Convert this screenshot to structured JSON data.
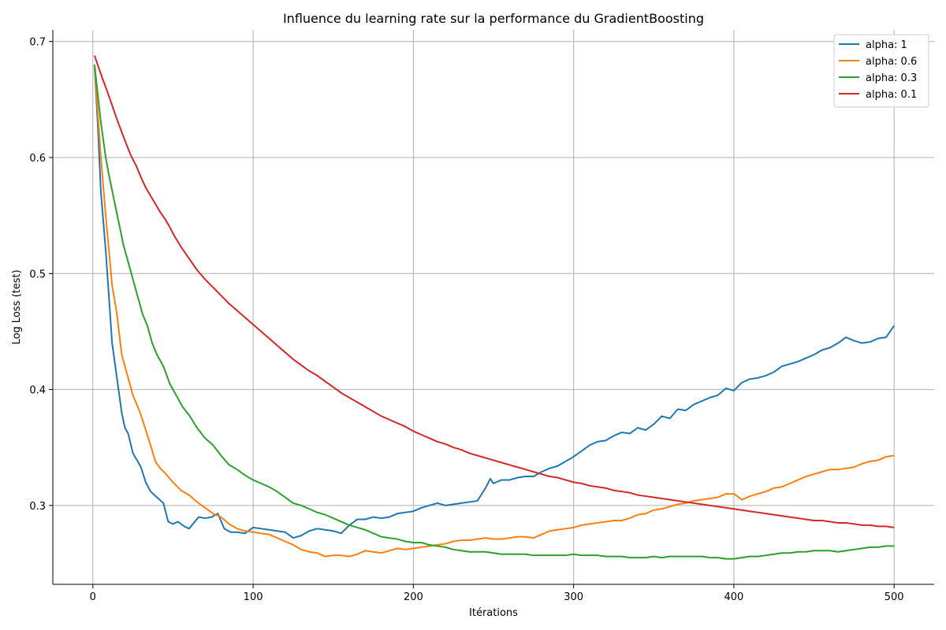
{
  "chart_data": {
    "type": "line",
    "title": "Influence du learning rate sur la performance du GradientBoosting",
    "xlabel": "Itérations",
    "ylabel": "Log Loss (test)",
    "xlim": [
      -25,
      525
    ],
    "ylim": [
      0.232,
      0.71
    ],
    "xticks": [
      0,
      100,
      200,
      300,
      400,
      500
    ],
    "yticks": [
      0.3,
      0.4,
      0.5,
      0.6,
      0.7
    ],
    "grid": true,
    "legend_position": "top-right",
    "series": [
      {
        "name": "alpha: 1",
        "color": "#1f77b4",
        "x": [
          1,
          3,
          5,
          8,
          10,
          12,
          15,
          18,
          20,
          22,
          25,
          28,
          30,
          33,
          36,
          40,
          44,
          47,
          50,
          53,
          57,
          60,
          63,
          66,
          70,
          74,
          78,
          82,
          86,
          90,
          95,
          100,
          105,
          110,
          115,
          120,
          125,
          130,
          135,
          140,
          145,
          150,
          155,
          160,
          165,
          170,
          175,
          180,
          185,
          190,
          195,
          200,
          205,
          210,
          215,
          220,
          225,
          230,
          235,
          240,
          245,
          248,
          250,
          255,
          260,
          265,
          270,
          275,
          280,
          285,
          290,
          295,
          300,
          305,
          310,
          315,
          320,
          325,
          330,
          335,
          340,
          345,
          350,
          355,
          360,
          365,
          370,
          375,
          380,
          385,
          390,
          395,
          400,
          405,
          410,
          415,
          420,
          425,
          430,
          435,
          440,
          445,
          450,
          455,
          460,
          465,
          470,
          475,
          480,
          485,
          490,
          495,
          500
        ],
        "values": [
          0.68,
          0.63,
          0.57,
          0.52,
          0.48,
          0.44,
          0.41,
          0.38,
          0.367,
          0.362,
          0.345,
          0.338,
          0.333,
          0.32,
          0.312,
          0.307,
          0.302,
          0.286,
          0.284,
          0.286,
          0.282,
          0.28,
          0.285,
          0.29,
          0.289,
          0.29,
          0.293,
          0.28,
          0.277,
          0.277,
          0.276,
          0.281,
          0.28,
          0.279,
          0.278,
          0.277,
          0.272,
          0.274,
          0.278,
          0.28,
          0.279,
          0.278,
          0.276,
          0.283,
          0.288,
          0.288,
          0.29,
          0.289,
          0.29,
          0.293,
          0.294,
          0.295,
          0.298,
          0.3,
          0.302,
          0.3,
          0.301,
          0.302,
          0.303,
          0.304,
          0.315,
          0.323,
          0.319,
          0.322,
          0.322,
          0.324,
          0.325,
          0.325,
          0.329,
          0.332,
          0.334,
          0.338,
          0.342,
          0.347,
          0.352,
          0.355,
          0.356,
          0.36,
          0.363,
          0.362,
          0.367,
          0.365,
          0.37,
          0.377,
          0.375,
          0.383,
          0.382,
          0.387,
          0.39,
          0.393,
          0.395,
          0.401,
          0.399,
          0.406,
          0.409,
          0.41,
          0.412,
          0.415,
          0.42,
          0.422,
          0.424,
          0.427,
          0.43,
          0.434,
          0.436,
          0.44,
          0.445,
          0.442,
          0.44,
          0.441,
          0.444,
          0.445,
          0.455
        ]
      },
      {
        "name": "alpha: 0.6",
        "color": "#ff7f0e",
        "x": [
          1,
          3,
          5,
          8,
          10,
          12,
          15,
          18,
          20,
          22,
          25,
          28,
          30,
          33,
          36,
          39,
          42,
          45,
          50,
          55,
          60,
          65,
          70,
          75,
          80,
          85,
          90,
          95,
          100,
          105,
          110,
          115,
          120,
          125,
          130,
          135,
          140,
          145,
          150,
          155,
          160,
          165,
          170,
          175,
          180,
          185,
          190,
          195,
          200,
          205,
          210,
          215,
          220,
          225,
          230,
          235,
          240,
          245,
          250,
          255,
          260,
          265,
          270,
          275,
          280,
          285,
          290,
          295,
          300,
          305,
          310,
          315,
          320,
          325,
          330,
          335,
          340,
          345,
          350,
          355,
          360,
          365,
          370,
          375,
          380,
          385,
          390,
          395,
          400,
          405,
          410,
          415,
          420,
          425,
          430,
          435,
          440,
          445,
          450,
          455,
          460,
          465,
          470,
          475,
          480,
          485,
          490,
          495,
          500
        ],
        "values": [
          0.68,
          0.64,
          0.6,
          0.55,
          0.52,
          0.49,
          0.465,
          0.43,
          0.42,
          0.41,
          0.395,
          0.385,
          0.378,
          0.365,
          0.352,
          0.338,
          0.332,
          0.328,
          0.32,
          0.313,
          0.309,
          0.303,
          0.298,
          0.293,
          0.29,
          0.284,
          0.28,
          0.278,
          0.277,
          0.276,
          0.275,
          0.272,
          0.269,
          0.266,
          0.262,
          0.26,
          0.259,
          0.256,
          0.257,
          0.257,
          0.256,
          0.258,
          0.261,
          0.26,
          0.259,
          0.261,
          0.263,
          0.262,
          0.263,
          0.264,
          0.265,
          0.266,
          0.267,
          0.269,
          0.27,
          0.27,
          0.271,
          0.272,
          0.271,
          0.271,
          0.272,
          0.273,
          0.273,
          0.272,
          0.275,
          0.278,
          0.279,
          0.28,
          0.281,
          0.283,
          0.284,
          0.285,
          0.286,
          0.287,
          0.287,
          0.289,
          0.292,
          0.293,
          0.296,
          0.297,
          0.299,
          0.301,
          0.302,
          0.304,
          0.305,
          0.306,
          0.307,
          0.31,
          0.31,
          0.305,
          0.308,
          0.31,
          0.312,
          0.315,
          0.316,
          0.319,
          0.322,
          0.325,
          0.327,
          0.329,
          0.331,
          0.331,
          0.332,
          0.333,
          0.336,
          0.338,
          0.339,
          0.342,
          0.343
        ]
      },
      {
        "name": "alpha: 0.3",
        "color": "#2ca02c",
        "x": [
          1,
          3,
          5,
          8,
          10,
          13,
          16,
          19,
          22,
          25,
          28,
          31,
          34,
          37,
          40,
          44,
          48,
          52,
          56,
          60,
          65,
          70,
          75,
          80,
          85,
          90,
          95,
          100,
          105,
          110,
          115,
          120,
          125,
          130,
          135,
          140,
          145,
          150,
          155,
          160,
          165,
          170,
          175,
          180,
          185,
          190,
          195,
          200,
          205,
          210,
          215,
          220,
          225,
          230,
          235,
          240,
          245,
          250,
          255,
          260,
          265,
          270,
          275,
          280,
          285,
          290,
          295,
          300,
          305,
          310,
          315,
          320,
          325,
          330,
          335,
          340,
          345,
          350,
          355,
          360,
          365,
          370,
          375,
          380,
          385,
          390,
          395,
          400,
          405,
          410,
          415,
          420,
          425,
          430,
          435,
          440,
          445,
          450,
          455,
          460,
          465,
          470,
          475,
          480,
          485,
          490,
          495,
          500
        ],
        "values": [
          0.68,
          0.655,
          0.63,
          0.6,
          0.585,
          0.565,
          0.545,
          0.525,
          0.51,
          0.495,
          0.48,
          0.465,
          0.455,
          0.44,
          0.43,
          0.42,
          0.405,
          0.395,
          0.385,
          0.378,
          0.367,
          0.358,
          0.352,
          0.343,
          0.335,
          0.331,
          0.326,
          0.322,
          0.319,
          0.316,
          0.312,
          0.307,
          0.302,
          0.3,
          0.297,
          0.294,
          0.292,
          0.289,
          0.286,
          0.283,
          0.281,
          0.279,
          0.276,
          0.273,
          0.272,
          0.271,
          0.269,
          0.268,
          0.268,
          0.266,
          0.265,
          0.264,
          0.262,
          0.261,
          0.26,
          0.26,
          0.26,
          0.259,
          0.258,
          0.258,
          0.258,
          0.258,
          0.257,
          0.257,
          0.257,
          0.257,
          0.257,
          0.258,
          0.257,
          0.257,
          0.257,
          0.256,
          0.256,
          0.256,
          0.255,
          0.255,
          0.255,
          0.256,
          0.255,
          0.256,
          0.256,
          0.256,
          0.256,
          0.256,
          0.255,
          0.255,
          0.254,
          0.254,
          0.255,
          0.256,
          0.256,
          0.257,
          0.258,
          0.259,
          0.259,
          0.26,
          0.26,
          0.261,
          0.261,
          0.261,
          0.26,
          0.261,
          0.262,
          0.263,
          0.264,
          0.264,
          0.265,
          0.265
        ]
      },
      {
        "name": "alpha: 0.1",
        "color": "#d62728",
        "x": [
          1,
          3,
          6,
          9,
          12,
          15,
          18,
          21,
          24,
          27,
          30,
          33,
          36,
          39,
          42,
          45,
          48,
          51,
          55,
          60,
          65,
          70,
          75,
          80,
          85,
          90,
          95,
          100,
          105,
          110,
          115,
          120,
          125,
          130,
          135,
          140,
          145,
          150,
          155,
          160,
          165,
          170,
          175,
          180,
          185,
          190,
          195,
          200,
          205,
          210,
          215,
          220,
          225,
          230,
          235,
          240,
          245,
          250,
          255,
          260,
          265,
          270,
          275,
          280,
          285,
          290,
          295,
          300,
          305,
          310,
          315,
          320,
          325,
          330,
          335,
          340,
          345,
          350,
          355,
          360,
          365,
          370,
          375,
          380,
          385,
          390,
          395,
          400,
          405,
          410,
          415,
          420,
          425,
          430,
          435,
          440,
          445,
          450,
          455,
          460,
          465,
          470,
          475,
          480,
          485,
          490,
          495,
          500
        ],
        "values": [
          0.688,
          0.68,
          0.668,
          0.657,
          0.645,
          0.633,
          0.622,
          0.611,
          0.601,
          0.593,
          0.583,
          0.574,
          0.567,
          0.56,
          0.553,
          0.547,
          0.54,
          0.532,
          0.523,
          0.513,
          0.503,
          0.495,
          0.488,
          0.481,
          0.474,
          0.468,
          0.462,
          0.456,
          0.45,
          0.444,
          0.438,
          0.432,
          0.426,
          0.421,
          0.416,
          0.412,
          0.407,
          0.402,
          0.397,
          0.393,
          0.389,
          0.385,
          0.381,
          0.377,
          0.374,
          0.371,
          0.368,
          0.364,
          0.361,
          0.358,
          0.355,
          0.353,
          0.35,
          0.348,
          0.345,
          0.343,
          0.341,
          0.339,
          0.337,
          0.335,
          0.333,
          0.331,
          0.329,
          0.327,
          0.325,
          0.324,
          0.322,
          0.32,
          0.319,
          0.317,
          0.316,
          0.315,
          0.313,
          0.312,
          0.311,
          0.309,
          0.308,
          0.307,
          0.306,
          0.305,
          0.304,
          0.303,
          0.302,
          0.301,
          0.3,
          0.299,
          0.298,
          0.297,
          0.296,
          0.295,
          0.294,
          0.293,
          0.292,
          0.291,
          0.29,
          0.289,
          0.288,
          0.287,
          0.287,
          0.286,
          0.285,
          0.285,
          0.284,
          0.283,
          0.283,
          0.282,
          0.282,
          0.281
        ]
      }
    ]
  }
}
